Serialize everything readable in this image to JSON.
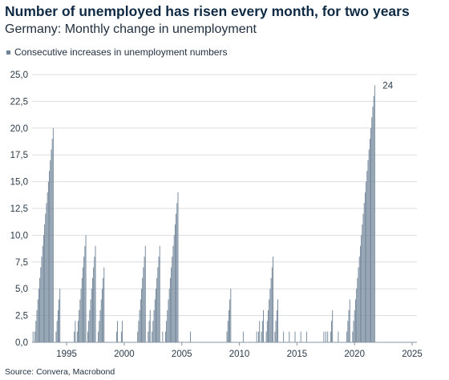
{
  "chart_data": {
    "type": "bar",
    "title": "Number of unemployed has risen every month, for two years",
    "subtitle": "Germany: Monthly change in unemployment",
    "legend": [
      "Consecutive increases in unemployment numbers"
    ],
    "source": "Source: Convera, Macrobond",
    "series": [
      {
        "name": "Consecutive increases in unemployment numbers",
        "color": "#6d8296",
        "start": "1992-02",
        "frequency": "monthly",
        "values": [
          1,
          0,
          1,
          2,
          3,
          4,
          5,
          6,
          7,
          8,
          9,
          10,
          11,
          12,
          13,
          14,
          15,
          16,
          17,
          18,
          19,
          20,
          0,
          0,
          1,
          2,
          3,
          4,
          5,
          0,
          0,
          0,
          0,
          0,
          0,
          0,
          0,
          0,
          0,
          0,
          0,
          0,
          0,
          1,
          2,
          0,
          1,
          2,
          3,
          4,
          5,
          6,
          7,
          8,
          9,
          10,
          0,
          1,
          2,
          3,
          4,
          5,
          6,
          7,
          8,
          9,
          0,
          0,
          1,
          2,
          3,
          4,
          5,
          6,
          7,
          0,
          0,
          0,
          0,
          0,
          0,
          0,
          0,
          0,
          0,
          0,
          0,
          1,
          2,
          0,
          0,
          0,
          1,
          2,
          0,
          0,
          0,
          0,
          0,
          0,
          0,
          0,
          0,
          0,
          0,
          0,
          0,
          0,
          0,
          1,
          2,
          3,
          4,
          5,
          6,
          7,
          8,
          9,
          0,
          0,
          1,
          2,
          3,
          0,
          1,
          2,
          3,
          4,
          5,
          6,
          7,
          8,
          9,
          0,
          0,
          1,
          0,
          0,
          1,
          2,
          3,
          4,
          5,
          6,
          7,
          8,
          9,
          10,
          11,
          12,
          13,
          14,
          0,
          0,
          0,
          0,
          0,
          0,
          0,
          0,
          0,
          0,
          0,
          0,
          1,
          0,
          0,
          0,
          0,
          0,
          0,
          0,
          0,
          0,
          0,
          0,
          0,
          0,
          0,
          0,
          0,
          0,
          0,
          0,
          0,
          0,
          0,
          0,
          0,
          0,
          0,
          0,
          0,
          0,
          0,
          0,
          0,
          0,
          0,
          0,
          0,
          0,
          1,
          2,
          3,
          4,
          5,
          0,
          0,
          0,
          0,
          0,
          0,
          0,
          0,
          0,
          0,
          0,
          0,
          1,
          0,
          0,
          0,
          0,
          0,
          0,
          0,
          0,
          0,
          0,
          0,
          0,
          0,
          1,
          0,
          1,
          2,
          0,
          1,
          2,
          3,
          0,
          0,
          1,
          2,
          3,
          4,
          5,
          6,
          7,
          8,
          0,
          1,
          2,
          3,
          4,
          0,
          0,
          0,
          0,
          0,
          1,
          0,
          0,
          0,
          0,
          0,
          1,
          0,
          0,
          0,
          0,
          0,
          1,
          0,
          0,
          0,
          0,
          0,
          1,
          0,
          0,
          0,
          0,
          0,
          1,
          0,
          0,
          0,
          0,
          0,
          0,
          0,
          0,
          0,
          0,
          0,
          0,
          0,
          0,
          0,
          0,
          0,
          1,
          0,
          1,
          0,
          1,
          0,
          0,
          1,
          2,
          3,
          0,
          0,
          0,
          0,
          0,
          1,
          0,
          0,
          0,
          0,
          0,
          0,
          0,
          0,
          1,
          2,
          3,
          4,
          0,
          0,
          1,
          2,
          3,
          4,
          5,
          6,
          7,
          8,
          9,
          10,
          11,
          12,
          13,
          14,
          15,
          16,
          17,
          18,
          19,
          20,
          21,
          22,
          23,
          24
        ]
      }
    ],
    "last_value_label": "24",
    "x_axis": {
      "type": "date",
      "range": [
        "1992-01",
        "2025-06"
      ],
      "tick_labels": [
        "1995",
        "2000",
        "2005",
        "2010",
        "2015",
        "2020",
        "2025"
      ]
    },
    "y_axis": {
      "range": [
        0,
        25
      ],
      "tick_labels": [
        "0,0",
        "2,5",
        "5,0",
        "7,5",
        "10,0",
        "12,5",
        "15,0",
        "17,5",
        "20,0",
        "22,5",
        "25,0"
      ]
    },
    "grid": "horizontal"
  }
}
